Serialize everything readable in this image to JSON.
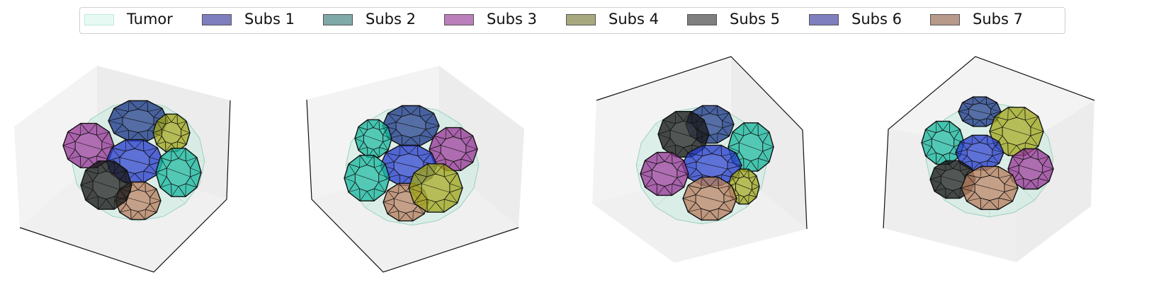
{
  "legend": {
    "entries": [
      {
        "label": "Tumor",
        "color": "#e6faf3"
      },
      {
        "label": "Subs 1",
        "color": "#7f7fbf"
      },
      {
        "label": "Subs 2",
        "color": "#7fa8a8"
      },
      {
        "label": "Subs 3",
        "color": "#bb7fbb"
      },
      {
        "label": "Subs 4",
        "color": "#a9a97f"
      },
      {
        "label": "Subs 5",
        "color": "#7f7f7f"
      },
      {
        "label": "Subs 6",
        "color": "#7f7fbf"
      },
      {
        "label": "Subs 7",
        "color": "#b89a8a"
      }
    ]
  },
  "subregion_colors": {
    "tumor": "#c8ece0",
    "subs1": "#1e3a8a",
    "subs2": "#1bb8a0",
    "subs3": "#9a3a9a",
    "subs4": "#a3a81e",
    "subs5": "#1a1a1a",
    "subs6": "#2a3fd0",
    "subs7": "#b88060"
  },
  "panels": [
    {
      "view": "view-1"
    },
    {
      "view": "view-2"
    },
    {
      "view": "view-3"
    },
    {
      "view": "view-4"
    }
  ]
}
